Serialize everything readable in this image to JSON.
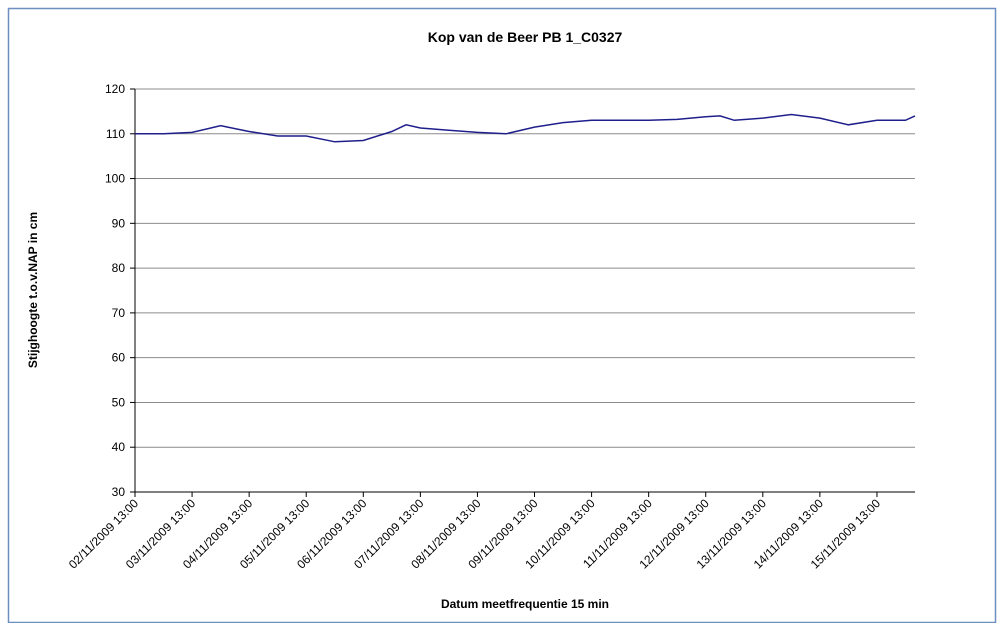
{
  "chart_data": {
    "type": "line",
    "title": "Kop van de Beer PB 1_C0327",
    "x_label": "Datum meetfrequentie 15 min",
    "y_label": "Stijghoogte t.o.v.NAP in cm",
    "ylim": [
      30,
      120
    ],
    "yticks": [
      30,
      40,
      50,
      60,
      70,
      80,
      90,
      100,
      110,
      120
    ],
    "xlim": [
      "02/11/2009 13:00",
      "16/11/2009 05:00"
    ],
    "xticks": [
      "02/11/2009 13:00",
      "03/11/2009 13:00",
      "04/11/2009 13:00",
      "05/11/2009 13:00",
      "06/11/2009 13:00",
      "07/11/2009 13:00",
      "08/11/2009 13:00",
      "09/11/2009 13:00",
      "10/11/2009 13:00",
      "11/11/2009 13:00",
      "12/11/2009 13:00",
      "13/11/2009 13:00",
      "14/11/2009 13:00",
      "15/11/2009 13:00"
    ],
    "grid": true,
    "x": [
      "02/11/2009 13:00",
      "03/11/2009 01:00",
      "03/11/2009 13:00",
      "04/11/2009 01:00",
      "04/11/2009 13:00",
      "05/11/2009 01:00",
      "05/11/2009 13:00",
      "06/11/2009 01:00",
      "06/11/2009 13:00",
      "07/11/2009 01:00",
      "07/11/2009 07:00",
      "07/11/2009 13:00",
      "08/11/2009 01:00",
      "08/11/2009 13:00",
      "09/11/2009 01:00",
      "09/11/2009 13:00",
      "10/11/2009 01:00",
      "10/11/2009 13:00",
      "11/11/2009 01:00",
      "11/11/2009 13:00",
      "12/11/2009 01:00",
      "12/11/2009 13:00",
      "12/11/2009 19:00",
      "13/11/2009 01:00",
      "13/11/2009 13:00",
      "14/11/2009 01:00",
      "14/11/2009 13:00",
      "15/11/2009 01:00",
      "15/11/2009 13:00",
      "16/11/2009 01:00",
      "16/11/2009 05:00"
    ],
    "series": [
      {
        "name": "Stijghoogte",
        "color": "#1f1f8c",
        "values": [
          110,
          110,
          110.3,
          111.8,
          110.5,
          109.5,
          109.5,
          108.2,
          108.5,
          110.5,
          112,
          111.3,
          110.8,
          110.3,
          110,
          111.5,
          112.5,
          113,
          113,
          113,
          113.2,
          113.8,
          114,
          113,
          113.5,
          114.3,
          113.5,
          112,
          113,
          113,
          114
        ]
      }
    ]
  }
}
